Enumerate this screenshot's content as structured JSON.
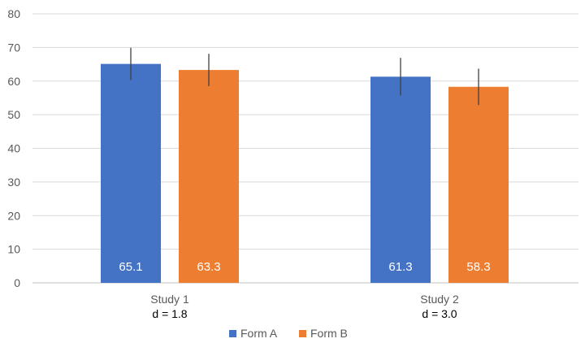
{
  "chart_data": {
    "type": "bar",
    "categories": [
      "Study 1",
      "Study 2"
    ],
    "category_sublabels": [
      "d = 1.8",
      "d = 3.0"
    ],
    "series": [
      {
        "name": "Form A",
        "values": [
          65.1,
          61.3
        ],
        "error": [
          4.8,
          5.6
        ],
        "color": "#4472C4"
      },
      {
        "name": "Form B",
        "values": [
          63.3,
          58.3
        ],
        "error": [
          4.8,
          5.4
        ],
        "color": "#ED7D31"
      }
    ],
    "ylim": [
      0,
      80
    ],
    "yticks": [
      "0",
      "10",
      "20",
      "30",
      "40",
      "50",
      "60",
      "70",
      "80"
    ],
    "grid": true,
    "legend_position": "bottom",
    "data_labels": [
      "65.1",
      "63.3",
      "61.3",
      "58.3"
    ]
  }
}
